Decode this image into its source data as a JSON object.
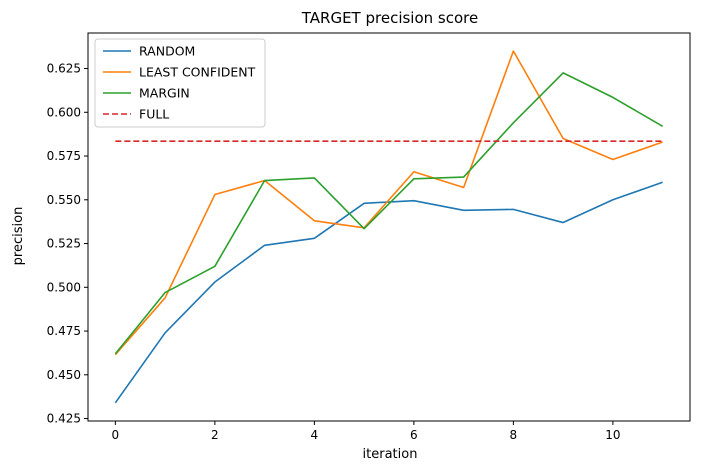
{
  "chart_data": {
    "type": "line",
    "title": "TARGET precision score",
    "xlabel": "iteration",
    "ylabel": "precision",
    "xlim": [
      -0.55,
      11.55
    ],
    "ylim": [
      0.4236,
      0.6453
    ],
    "x_ticks": [
      0,
      2,
      4,
      6,
      8,
      10
    ],
    "x_tick_labels": [
      "0",
      "2",
      "4",
      "6",
      "8",
      "10"
    ],
    "y_ticks": [
      0.425,
      0.45,
      0.475,
      0.5,
      0.525,
      0.55,
      0.575,
      0.6,
      0.625
    ],
    "y_tick_labels": [
      "0.425",
      "0.450",
      "0.475",
      "0.500",
      "0.525",
      "0.550",
      "0.575",
      "0.600",
      "0.625"
    ],
    "grid": false,
    "legend_position": "upper-left",
    "x": [
      0,
      1,
      2,
      3,
      4,
      5,
      6,
      7,
      8,
      9,
      10,
      11
    ],
    "series": [
      {
        "name": "RANDOM",
        "color": "#1f77b4",
        "style": "solid",
        "values": [
          0.434,
          0.474,
          0.503,
          0.524,
          0.528,
          0.548,
          0.5495,
          0.544,
          0.5445,
          0.537,
          0.55,
          0.56
        ]
      },
      {
        "name": "LEAST CONFIDENT",
        "color": "#ff7f0e",
        "style": "solid",
        "values": [
          0.4615,
          0.494,
          0.553,
          0.561,
          0.538,
          0.534,
          0.566,
          0.557,
          0.635,
          0.585,
          0.573,
          0.583
        ]
      },
      {
        "name": "MARGIN",
        "color": "#2ca02c",
        "style": "solid",
        "values": [
          0.462,
          0.497,
          0.512,
          0.561,
          0.5625,
          0.5335,
          0.562,
          0.563,
          0.594,
          0.6225,
          0.6085,
          0.592
        ]
      },
      {
        "name": "FULL",
        "color": "#d62728",
        "style": "dashed",
        "values": [
          0.5835,
          0.5835,
          0.5835,
          0.5835,
          0.5835,
          0.5835,
          0.5835,
          0.5835,
          0.5835,
          0.5835,
          0.5835,
          0.5835
        ]
      }
    ]
  }
}
